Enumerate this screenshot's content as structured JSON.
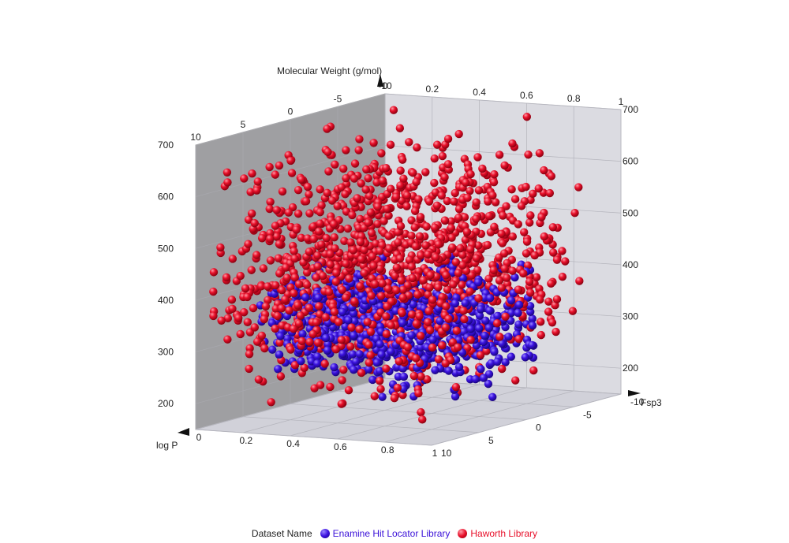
{
  "chart_data": {
    "type": "scatter",
    "dimensions": "3d",
    "axes": {
      "vertical": {
        "label": "Molecular Weight (g/mol)",
        "range": [
          150,
          700
        ],
        "ticks": [
          200,
          300,
          400,
          500,
          600,
          700
        ]
      },
      "fsp3": {
        "label": "Fsp3",
        "range": [
          0,
          1
        ],
        "ticks": [
          0,
          0.2,
          0.4,
          0.6,
          0.8,
          1
        ]
      },
      "logp": {
        "label": "log P",
        "range": [
          -10,
          10
        ],
        "ticks": [
          -10,
          -5,
          0,
          5,
          10
        ]
      }
    },
    "grid": true,
    "legend": {
      "title": "Dataset Name",
      "position": "bottom-center"
    },
    "series": [
      {
        "name": "Enamine Hit Locator Library",
        "color": "#3a10d8",
        "fsp3_range": [
          0.05,
          0.95
        ],
        "logp_range": [
          -3,
          5
        ],
        "mw_range": [
          200,
          450
        ]
      },
      {
        "name": "Haworth Library",
        "color": "#e8102a",
        "fsp3_range": [
          0.05,
          1.0
        ],
        "logp_range": [
          -6,
          10
        ],
        "mw_range": [
          180,
          700
        ]
      }
    ]
  }
}
